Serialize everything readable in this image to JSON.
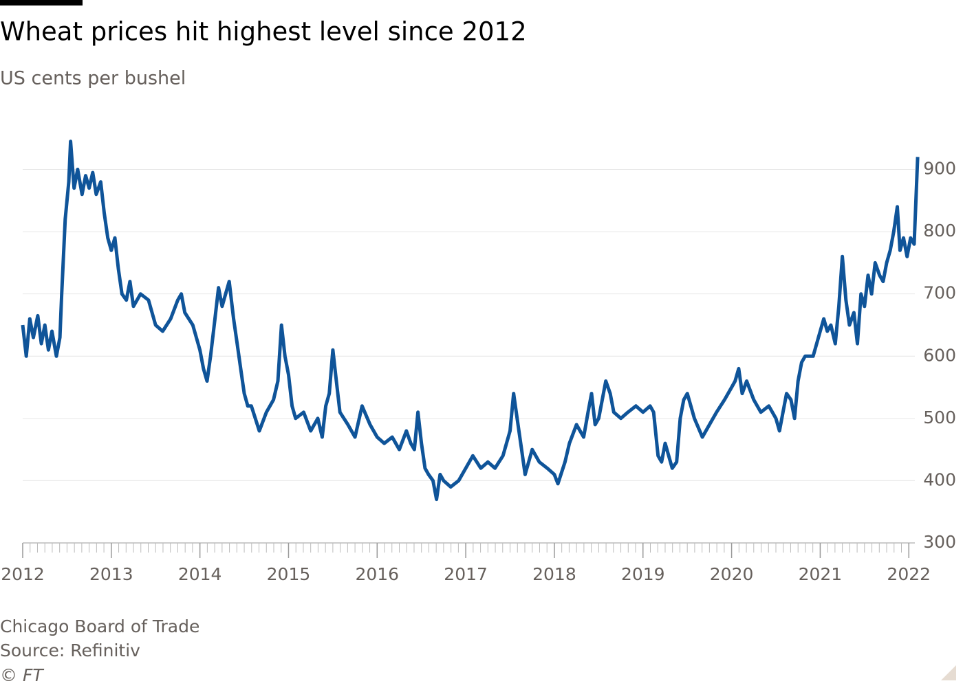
{
  "chart_data": {
    "type": "line",
    "title": "Wheat prices hit highest level since 2012",
    "subtitle": "US cents per bushel",
    "notes": [
      "Chicago Board of Trade",
      "Source: Refinitiv",
      "© FT"
    ],
    "xlim": [
      2012,
      2022.2
    ],
    "xticks": [
      2012,
      2013,
      2014,
      2015,
      2016,
      2017,
      2018,
      2019,
      2020,
      2021,
      2022
    ],
    "xminor_divisions": 12,
    "ylim": [
      300,
      990
    ],
    "yticks": [
      300,
      400,
      500,
      600,
      700,
      800,
      900
    ],
    "grid": true,
    "y_axis_side": "right",
    "x": [
      2012.0,
      2012.04,
      2012.08,
      2012.12,
      2012.17,
      2012.21,
      2012.25,
      2012.29,
      2012.33,
      2012.38,
      2012.42,
      2012.44,
      2012.48,
      2012.52,
      2012.54,
      2012.58,
      2012.62,
      2012.67,
      2012.71,
      2012.75,
      2012.79,
      2012.83,
      2012.88,
      2012.92,
      2012.96,
      2013.0,
      2013.04,
      2013.08,
      2013.12,
      2013.17,
      2013.21,
      2013.25,
      2013.33,
      2013.42,
      2013.5,
      2013.58,
      2013.67,
      2013.75,
      2013.79,
      2013.83,
      2013.92,
      2014.0,
      2014.04,
      2014.08,
      2014.12,
      2014.17,
      2014.21,
      2014.25,
      2014.29,
      2014.33,
      2014.38,
      2014.42,
      2014.46,
      2014.5,
      2014.54,
      2014.58,
      2014.67,
      2014.75,
      2014.83,
      2014.88,
      2014.92,
      2014.96,
      2015.0,
      2015.04,
      2015.08,
      2015.17,
      2015.25,
      2015.33,
      2015.38,
      2015.42,
      2015.46,
      2015.5,
      2015.54,
      2015.58,
      2015.67,
      2015.75,
      2015.83,
      2015.92,
      2016.0,
      2016.08,
      2016.17,
      2016.25,
      2016.33,
      2016.38,
      2016.42,
      2016.46,
      2016.5,
      2016.54,
      2016.58,
      2016.63,
      2016.67,
      2016.71,
      2016.75,
      2016.83,
      2016.92,
      2017.0,
      2017.08,
      2017.17,
      2017.25,
      2017.33,
      2017.42,
      2017.5,
      2017.54,
      2017.58,
      2017.63,
      2017.67,
      2017.71,
      2017.75,
      2017.83,
      2017.92,
      2018.0,
      2018.04,
      2018.12,
      2018.17,
      2018.25,
      2018.33,
      2018.38,
      2018.42,
      2018.46,
      2018.5,
      2018.58,
      2018.63,
      2018.67,
      2018.75,
      2018.83,
      2018.92,
      2019.0,
      2019.08,
      2019.12,
      2019.17,
      2019.21,
      2019.25,
      2019.33,
      2019.38,
      2019.42,
      2019.46,
      2019.5,
      2019.58,
      2019.67,
      2019.75,
      2019.83,
      2019.92,
      2020.0,
      2020.04,
      2020.08,
      2020.12,
      2020.17,
      2020.25,
      2020.33,
      2020.42,
      2020.5,
      2020.54,
      2020.58,
      2020.62,
      2020.67,
      2020.71,
      2020.75,
      2020.79,
      2020.83,
      2020.92,
      2021.0,
      2021.04,
      2021.08,
      2021.12,
      2021.17,
      2021.21,
      2021.25,
      2021.29,
      2021.33,
      2021.38,
      2021.42,
      2021.46,
      2021.5,
      2021.54,
      2021.58,
      2021.62,
      2021.67,
      2021.71,
      2021.75,
      2021.79,
      2021.83,
      2021.87,
      2021.9,
      2021.94,
      2021.98,
      2022.02,
      2022.06,
      2022.1
    ],
    "series": [
      {
        "name": "Wheat",
        "color": "#0f5499",
        "values": [
          650,
          600,
          660,
          630,
          665,
          620,
          650,
          610,
          640,
          600,
          630,
          700,
          820,
          880,
          945,
          870,
          900,
          860,
          890,
          870,
          895,
          860,
          880,
          830,
          790,
          770,
          790,
          740,
          700,
          690,
          720,
          680,
          700,
          690,
          650,
          640,
          660,
          690,
          700,
          670,
          650,
          610,
          580,
          560,
          600,
          660,
          710,
          680,
          700,
          720,
          660,
          620,
          580,
          540,
          520,
          520,
          480,
          510,
          530,
          560,
          650,
          600,
          570,
          520,
          500,
          510,
          480,
          500,
          470,
          520,
          540,
          610,
          560,
          510,
          490,
          470,
          520,
          490,
          470,
          460,
          470,
          450,
          480,
          460,
          450,
          510,
          460,
          420,
          410,
          400,
          370,
          410,
          400,
          390,
          400,
          420,
          440,
          420,
          430,
          420,
          440,
          480,
          540,
          500,
          450,
          410,
          430,
          450,
          430,
          420,
          410,
          395,
          430,
          460,
          490,
          470,
          510,
          540,
          490,
          500,
          560,
          540,
          510,
          500,
          510,
          520,
          510,
          520,
          510,
          440,
          430,
          460,
          420,
          430,
          500,
          530,
          540,
          500,
          470,
          490,
          510,
          530,
          550,
          560,
          580,
          540,
          560,
          530,
          510,
          520,
          500,
          480,
          510,
          540,
          530,
          500,
          560,
          590,
          600,
          600,
          640,
          660,
          640,
          650,
          620,
          680,
          760,
          690,
          650,
          670,
          620,
          700,
          680,
          730,
          700,
          750,
          730,
          720,
          750,
          770,
          800,
          840,
          770,
          790,
          760,
          790,
          780,
          920
        ]
      }
    ]
  }
}
